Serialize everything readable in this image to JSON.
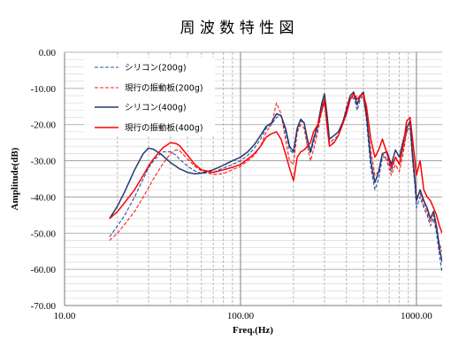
{
  "chart_data": {
    "type": "line",
    "title": "周 波 数 特 性 図",
    "xlabel": "Freq.(Hz)",
    "ylabel": "Amplitude(dB)",
    "x_scale": "log",
    "xlim": [
      10,
      1400
    ],
    "ylim": [
      -70,
      0
    ],
    "grid": true,
    "legend_position": "top-left",
    "x_ticks": [
      {
        "value": 10,
        "label": "10.00"
      },
      {
        "value": 100,
        "label": "100.00"
      },
      {
        "value": 1000,
        "label": "1000.00"
      }
    ],
    "y_ticks": [
      {
        "value": 0,
        "label": "0.00"
      },
      {
        "value": -10,
        "label": "-10.00"
      },
      {
        "value": -20,
        "label": "-20.00"
      },
      {
        "value": -30,
        "label": "-30.00"
      },
      {
        "value": -40,
        "label": "-40.00"
      },
      {
        "value": -50,
        "label": "-50.00"
      },
      {
        "value": -60,
        "label": "-60.00"
      },
      {
        "value": -70,
        "label": "-70.00"
      }
    ],
    "x": [
      18,
      20,
      22,
      25,
      28,
      30,
      32,
      36,
      40,
      43,
      45,
      50,
      55,
      60,
      70,
      80,
      90,
      100,
      110,
      120,
      130,
      140,
      150,
      160,
      170,
      180,
      190,
      200,
      210,
      220,
      230,
      240,
      250,
      260,
      275,
      290,
      300,
      310,
      320,
      340,
      360,
      380,
      400,
      420,
      440,
      460,
      480,
      500,
      520,
      550,
      580,
      610,
      640,
      680,
      720,
      760,
      800,
      840,
      880,
      920,
      950,
      980,
      1000,
      1050,
      1100,
      1150,
      1200,
      1250,
      1300,
      1350,
      1400
    ],
    "series": [
      {
        "name": "シリコン(200g)",
        "color": "#2f4fa8",
        "line_style": "dashed",
        "y": [
          -51,
          -48,
          -45,
          -40,
          -35,
          -32,
          -30,
          -27.5,
          -27.5,
          -28.5,
          -29.5,
          -31.5,
          -32.8,
          -33.5,
          -33.2,
          -32,
          -31,
          -30,
          -28.5,
          -26.5,
          -24,
          -21,
          -20,
          -18,
          -17.5,
          -22,
          -27,
          -28,
          -22,
          -19,
          -19.5,
          -25,
          -28,
          -25,
          -21,
          -15,
          -13,
          -18,
          -25,
          -24,
          -23,
          -20,
          -17,
          -13,
          -12,
          -16,
          -13,
          -12,
          -19,
          -32,
          -38,
          -35,
          -29,
          -29,
          -33,
          -29,
          -31,
          -26,
          -22,
          -21,
          -30,
          -37,
          -43,
          -40,
          -43,
          -45,
          -48,
          -46,
          -50,
          -56,
          -61
        ]
      },
      {
        "name": "現行の振動板(200g)",
        "color": "#ff1a1a",
        "line_style": "dashed",
        "y": [
          -52,
          -50,
          -47.5,
          -44,
          -40,
          -37.5,
          -35,
          -31,
          -28,
          -27,
          -27.2,
          -29.5,
          -31.5,
          -32.8,
          -33.8,
          -33.5,
          -32.5,
          -31.5,
          -30,
          -28.5,
          -26,
          -22,
          -20,
          -14,
          -17,
          -24,
          -30,
          -31,
          -22,
          -20,
          -21,
          -26,
          -30,
          -27,
          -22,
          -16,
          -14,
          -19,
          -25,
          -25,
          -23,
          -20,
          -15,
          -12,
          -13,
          -12,
          -12,
          -13,
          -18,
          -27,
          -34,
          -33,
          -28,
          -30,
          -34,
          -31,
          -33,
          -28,
          -22,
          -20,
          -30,
          -36,
          -40,
          -39,
          -42,
          -44,
          -47,
          -45,
          -49,
          -53,
          -55
        ]
      },
      {
        "name": "シリコン(400g)",
        "color": "#203a6e",
        "line_style": "solid",
        "y": [
          -46,
          -42.5,
          -38.5,
          -32.5,
          -28,
          -26.5,
          -26.8,
          -28.5,
          -30.5,
          -31.5,
          -32.2,
          -33.2,
          -33.6,
          -33.4,
          -32.5,
          -31.2,
          -30,
          -29,
          -27.5,
          -25.5,
          -23,
          -20.5,
          -19.5,
          -17,
          -17.5,
          -21,
          -26,
          -27.5,
          -21,
          -18.5,
          -19.5,
          -24,
          -27.5,
          -24,
          -20,
          -14,
          -11.5,
          -17,
          -24,
          -23,
          -22,
          -19.5,
          -16,
          -12,
          -11,
          -14.5,
          -12,
          -11,
          -17,
          -30,
          -36,
          -33,
          -28,
          -27.5,
          -31,
          -27,
          -29,
          -24.5,
          -21,
          -19,
          -28,
          -35,
          -41,
          -38,
          -41,
          -43,
          -46,
          -44,
          -48,
          -54,
          -58
        ]
      },
      {
        "name": "現行の振動板(400g)",
        "color": "#ff0000",
        "line_style": "solid",
        "y": [
          -46,
          -44,
          -41.5,
          -38,
          -34,
          -31.5,
          -29.5,
          -26.5,
          -25,
          -25.2,
          -25.8,
          -28.5,
          -31,
          -32.5,
          -33.2,
          -32.5,
          -31.8,
          -31,
          -29.5,
          -28,
          -26,
          -23.5,
          -22.5,
          -22,
          -24,
          -28,
          -32,
          -35.5,
          -29,
          -27.5,
          -27,
          -26,
          -25,
          -22,
          -20,
          -16,
          -13,
          -20,
          -26,
          -25,
          -23,
          -20,
          -17,
          -13,
          -11.5,
          -13,
          -12,
          -11.5,
          -15,
          -24,
          -29,
          -27,
          -24,
          -28,
          -32,
          -29,
          -31,
          -26,
          -19,
          -18,
          -24,
          -30,
          -34,
          -30,
          -38,
          -40,
          -41,
          -43,
          -45,
          -48,
          -50
        ]
      }
    ]
  }
}
